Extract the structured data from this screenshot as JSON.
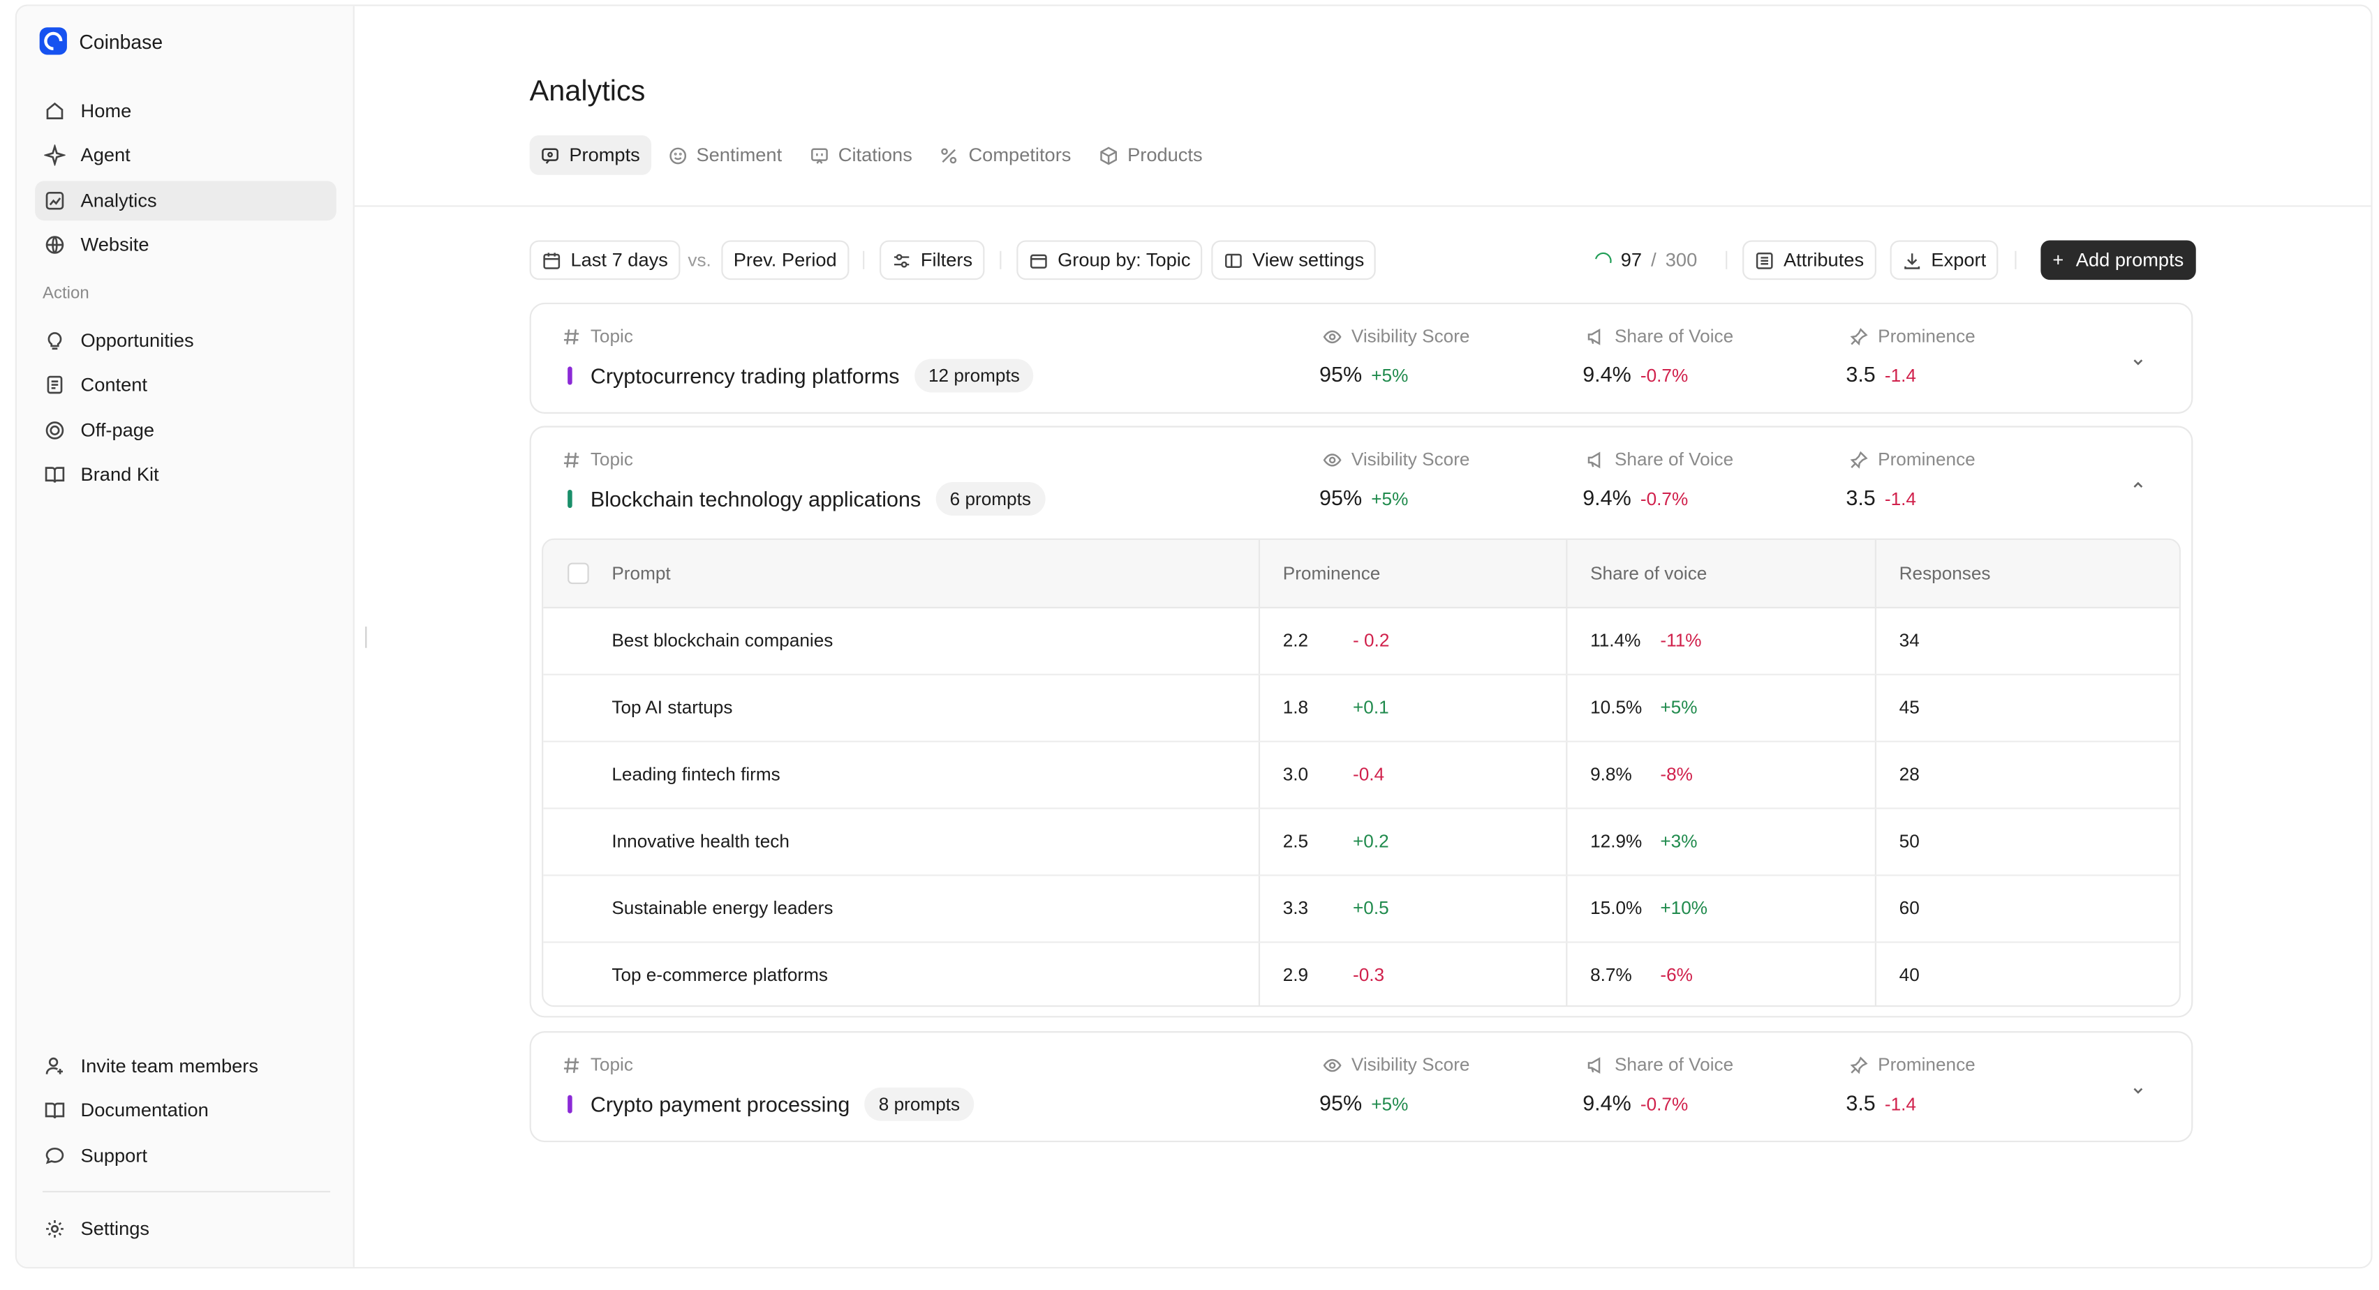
{
  "sidebar": {
    "brand": {
      "name": "Coinbase",
      "icon": "coinbase-logo-icon"
    },
    "nav": [
      {
        "label": "Home",
        "icon": "home-icon",
        "active": false
      },
      {
        "label": "Agent",
        "icon": "sparkle-icon",
        "active": false
      },
      {
        "label": "Analytics",
        "icon": "chart-icon",
        "active": true
      },
      {
        "label": "Website",
        "icon": "globe-icon",
        "active": false
      }
    ],
    "section_label": "Action",
    "action_items": [
      {
        "label": "Opportunities",
        "icon": "lightbulb-icon"
      },
      {
        "label": "Content",
        "icon": "document-icon"
      },
      {
        "label": "Off-page",
        "icon": "target-icon"
      },
      {
        "label": "Brand Kit",
        "icon": "book-open-icon"
      }
    ],
    "footer_items": [
      {
        "label": "Invite team members",
        "icon": "user-plus-icon"
      },
      {
        "label": "Documentation",
        "icon": "book-icon"
      },
      {
        "label": "Support",
        "icon": "chat-bubble-icon"
      }
    ],
    "settings": {
      "label": "Settings",
      "icon": "gear-icon"
    }
  },
  "main": {
    "title": "Analytics",
    "tabs": [
      {
        "label": "Prompts",
        "icon": "prompts-icon",
        "active": true
      },
      {
        "label": "Sentiment",
        "icon": "smile-icon",
        "active": false
      },
      {
        "label": "Citations",
        "icon": "quote-icon",
        "active": false
      },
      {
        "label": "Competitors",
        "icon": "percent-icon",
        "active": false
      },
      {
        "label": "Products",
        "icon": "cube-icon",
        "active": false
      }
    ],
    "toolbar": {
      "date_range": "Last 7 days",
      "vs": "vs.",
      "compare": "Prev. Period",
      "filters": "Filters",
      "group_by": "Group by: Topic",
      "view_settings": "View settings",
      "quota_used": "97",
      "quota_sep": "/",
      "quota_total": "300",
      "attributes": "Attributes",
      "export": "Export",
      "add_prompts": "Add prompts",
      "add_symbol": "+"
    },
    "topics": [
      {
        "label": "Topic",
        "name": "Cryptocurrency trading platforms",
        "count": "12 prompts",
        "color": "#8b2ad6",
        "expanded": false,
        "visibility": {
          "label": "Visibility Score",
          "value": "95%",
          "delta": "+5%"
        },
        "share": {
          "label": "Share of Voice",
          "value": "9.4%",
          "delta": "-0.7%"
        },
        "prominence": {
          "label": "Prominence",
          "value": "3.5",
          "delta": "-1.4"
        }
      },
      {
        "label": "Topic",
        "name": "Blockchain technology applications",
        "count": "6 prompts",
        "color": "#1a8f6a",
        "expanded": true,
        "visibility": {
          "label": "Visibility Score",
          "value": "95%",
          "delta": "+5%"
        },
        "share": {
          "label": "Share of Voice",
          "value": "9.4%",
          "delta": "-0.7%"
        },
        "prominence": {
          "label": "Prominence",
          "value": "3.5",
          "delta": "-1.4"
        },
        "table": {
          "headers": [
            "Prompt",
            "Prominence",
            "Share of voice",
            "Responses"
          ],
          "rows": [
            {
              "prompt": "Best blockchain companies",
              "prominence": "2.2",
              "prominence_delta": "- 0.2",
              "prom_dir": "neg",
              "share": "11.4%",
              "share_delta": "-11%",
              "share_dir": "neg",
              "responses": "34"
            },
            {
              "prompt": "Top AI startups",
              "prominence": "1.8",
              "prominence_delta": "+0.1",
              "prom_dir": "pos",
              "share": "10.5%",
              "share_delta": "+5%",
              "share_dir": "pos",
              "responses": "45"
            },
            {
              "prompt": "Leading fintech firms",
              "prominence": "3.0",
              "prominence_delta": "-0.4",
              "prom_dir": "neg",
              "share": "9.8%",
              "share_delta": "-8%",
              "share_dir": "neg",
              "responses": "28"
            },
            {
              "prompt": "Innovative health tech",
              "prominence": "2.5",
              "prominence_delta": "+0.2",
              "prom_dir": "pos",
              "share": "12.9%",
              "share_delta": "+3%",
              "share_dir": "pos",
              "responses": "50"
            },
            {
              "prompt": "Sustainable energy leaders",
              "prominence": "3.3",
              "prominence_delta": "+0.5",
              "prom_dir": "pos",
              "share": "15.0%",
              "share_delta": "+10%",
              "share_dir": "pos",
              "responses": "60"
            },
            {
              "prompt": "Top e-commerce platforms",
              "prominence": "2.9",
              "prominence_delta": "-0.3",
              "prom_dir": "neg",
              "share": "8.7%",
              "share_delta": "-6%",
              "share_dir": "neg",
              "responses": "40"
            }
          ]
        }
      },
      {
        "label": "Topic",
        "name": "Crypto payment processing",
        "count": "8 prompts",
        "color": "#8b2ad6",
        "expanded": false,
        "visibility": {
          "label": "Visibility Score",
          "value": "95%",
          "delta": "+5%"
        },
        "share": {
          "label": "Share of Voice",
          "value": "9.4%",
          "delta": "-0.7%"
        },
        "prominence": {
          "label": "Prominence",
          "value": "3.5",
          "delta": "-1.4"
        }
      }
    ]
  },
  "colors": {
    "positive": "#1f8a4c",
    "negative": "#d0204b",
    "primary_button": "#2a2a2a",
    "brand": "#1652f0"
  }
}
